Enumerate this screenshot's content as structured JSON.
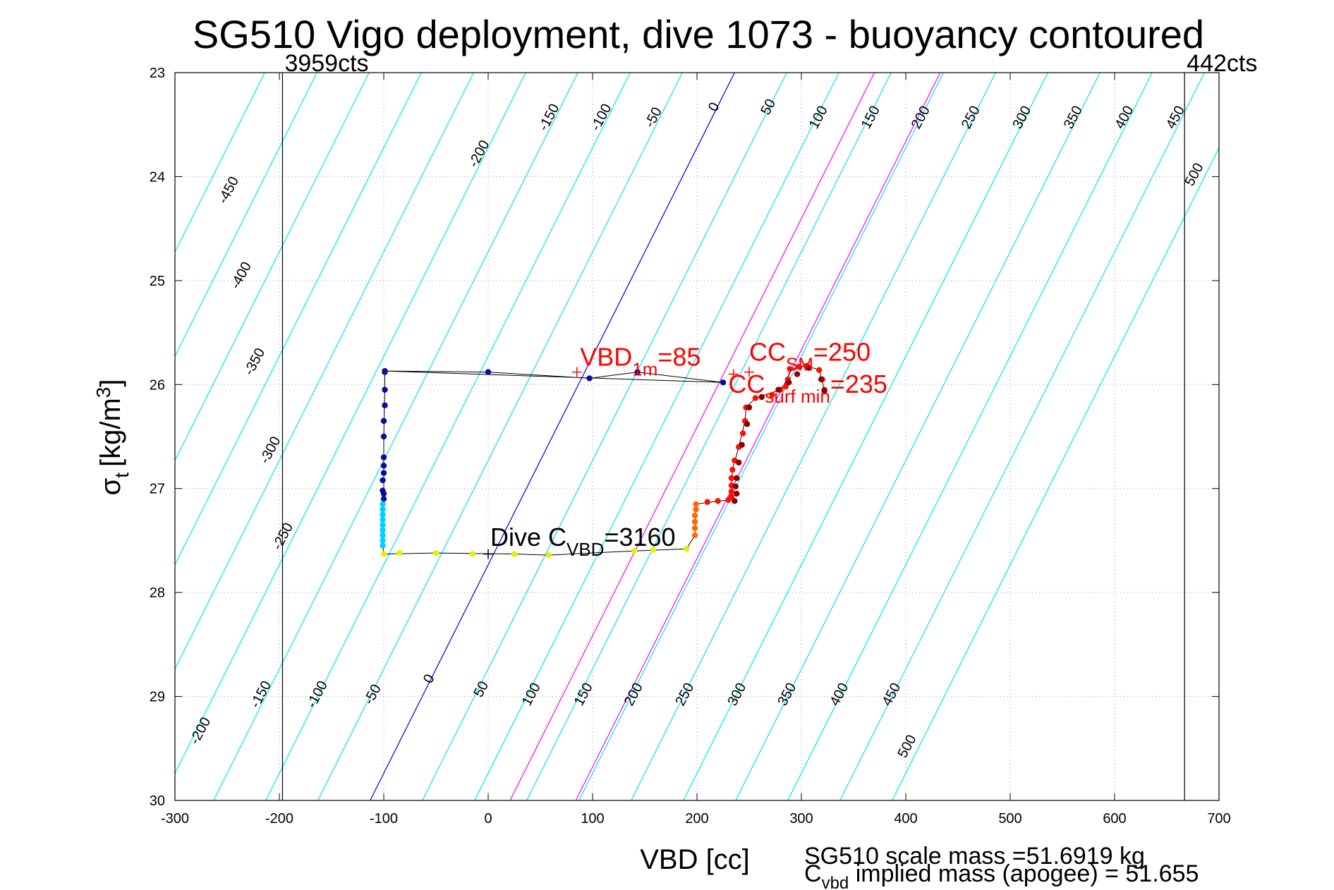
{
  "chart_data": {
    "type": "scatter",
    "title": "SG510 Vigo deployment, dive 1073 - buoyancy contoured",
    "xlabel": "VBD [cc]",
    "ylabel": "σt [kg/m3]",
    "ylabel_main": "σ",
    "ylabel_sub": "t",
    "ylabel_unit": "[kg/m",
    "ylabel_sup": "3",
    "ylabel_close": "]",
    "xlim": [
      -300,
      700
    ],
    "ylim": [
      23,
      30
    ],
    "y_reversed": true,
    "grid": true,
    "x_ticks": [
      -300,
      -200,
      -100,
      0,
      100,
      200,
      300,
      400,
      500,
      600,
      700
    ],
    "y_ticks": [
      23,
      24,
      25,
      26,
      27,
      28,
      29,
      30
    ],
    "contours": {
      "levels": [
        -450,
        -400,
        -350,
        -300,
        -250,
        -200,
        -150,
        -100,
        -50,
        0,
        50,
        100,
        150,
        200,
        250,
        300,
        350,
        400,
        450,
        500
      ],
      "slope_cc_per_sigma": 70,
      "zero_line_x_at_sigma_23": 236,
      "zero_line_x_at_sigma_30": -113,
      "highlight_colors": {
        "0": "#0000dd"
      },
      "magenta_lines": [
        {
          "x_at_23": 370,
          "x_at_30": 21
        },
        {
          "x_at_23": 433,
          "x_at_30": 84
        }
      ],
      "color": "#00e5ee",
      "top_labels": [
        {
          "text": "-450",
          "x": -245,
          "y": 24.15
        },
        {
          "text": "-400",
          "x": -233,
          "y": 24.97
        },
        {
          "text": "-350",
          "x": -220,
          "y": 25.8
        },
        {
          "text": "-300",
          "x": -205,
          "y": 26.65
        },
        {
          "text": "-250",
          "x": -193,
          "y": 27.48
        },
        {
          "text": "-200",
          "x": -5,
          "y": 23.8
        },
        {
          "text": "-150",
          "x": 62,
          "y": 23.45
        },
        {
          "text": "-100",
          "x": 112,
          "y": 23.45
        },
        {
          "text": "-50",
          "x": 162,
          "y": 23.45
        },
        {
          "text": "0",
          "x": 220,
          "y": 23.35
        },
        {
          "text": "50",
          "x": 272,
          "y": 23.35
        },
        {
          "text": "100",
          "x": 320,
          "y": 23.45
        },
        {
          "text": "150",
          "x": 370,
          "y": 23.45
        },
        {
          "text": "200",
          "x": 418,
          "y": 23.45
        },
        {
          "text": "250",
          "x": 466,
          "y": 23.45
        },
        {
          "text": "300",
          "x": 515,
          "y": 23.45
        },
        {
          "text": "350",
          "x": 564,
          "y": 23.45
        },
        {
          "text": "400",
          "x": 613,
          "y": 23.45
        },
        {
          "text": "450",
          "x": 662,
          "y": 23.45
        },
        {
          "text": "500",
          "x": 680,
          "y": 24.0
        }
      ],
      "bottom_labels": [
        {
          "text": "-200",
          "x": -272,
          "y": 29.35
        },
        {
          "text": "-150",
          "x": -214,
          "y": 29.0
        },
        {
          "text": "-100",
          "x": -160,
          "y": 29.0
        },
        {
          "text": "-50",
          "x": -107,
          "y": 29.0
        },
        {
          "text": "0",
          "x": -53,
          "y": 28.85
        },
        {
          "text": "50",
          "x": -3,
          "y": 28.95
        },
        {
          "text": "100",
          "x": 45,
          "y": 29.0
        },
        {
          "text": "150",
          "x": 95,
          "y": 29.0
        },
        {
          "text": "200",
          "x": 143,
          "y": 29.0
        },
        {
          "text": "250",
          "x": 192,
          "y": 29.0
        },
        {
          "text": "300",
          "x": 242,
          "y": 29.0
        },
        {
          "text": "350",
          "x": 290,
          "y": 29.0
        },
        {
          "text": "400",
          "x": 340,
          "y": 29.0
        },
        {
          "text": "450",
          "x": 390,
          "y": 29.0
        },
        {
          "text": "500",
          "x": 405,
          "y": 29.5
        }
      ]
    },
    "count_lines": [
      {
        "x": -197,
        "label": "3959cts"
      },
      {
        "x": 667,
        "label": "442cts"
      }
    ],
    "series": [
      {
        "points": [
          [
            -99,
            25.87
          ],
          [
            0,
            25.88
          ],
          [
            97,
            25.94
          ],
          [
            143,
            25.88
          ],
          [
            225,
            25.98
          ],
          [
            -99,
            25.88
          ],
          [
            -99,
            26.05
          ],
          [
            -99,
            26.2
          ],
          [
            -100,
            26.35
          ],
          [
            -100,
            26.5
          ],
          [
            -100,
            26.7
          ],
          [
            -100,
            26.78
          ],
          [
            -100,
            26.85
          ],
          [
            -101,
            26.92
          ],
          [
            -101,
            27.02
          ],
          [
            -100,
            27.05
          ],
          [
            -100,
            27.1
          ]
        ],
        "color": "#0a0aa0"
      },
      {
        "points": [
          [
            -101,
            27.15
          ],
          [
            -101,
            27.2
          ],
          [
            -101,
            27.25
          ],
          [
            -101,
            27.3
          ],
          [
            -101,
            27.35
          ],
          [
            -101,
            27.4
          ],
          [
            -101,
            27.45
          ],
          [
            -101,
            27.5
          ],
          [
            -101,
            27.55
          ]
        ],
        "color": "#00d0ff"
      },
      {
        "points": [
          [
            -100,
            27.63
          ],
          [
            -85,
            27.62
          ],
          [
            -50,
            27.62
          ],
          [
            -15,
            27.63
          ],
          [
            25,
            27.63
          ],
          [
            58,
            27.64
          ],
          [
            140,
            27.6
          ],
          [
            158,
            27.59
          ],
          [
            190,
            27.58
          ]
        ],
        "color": "#e8f000"
      },
      {
        "points": [
          [
            198,
            27.45
          ],
          [
            198,
            27.38
          ],
          [
            198,
            27.32
          ],
          [
            198,
            27.26
          ],
          [
            199,
            27.2
          ],
          [
            199,
            27.15
          ]
        ],
        "color": "#ff6a00"
      },
      {
        "points": [
          [
            210,
            27.13
          ],
          [
            220,
            27.12
          ],
          [
            230,
            27.11
          ],
          [
            233,
            27.08
          ],
          [
            233,
            27.03
          ],
          [
            233,
            26.97
          ],
          [
            233,
            26.9
          ],
          [
            234,
            26.82
          ],
          [
            236,
            26.73
          ],
          [
            240,
            26.6
          ],
          [
            244,
            26.47
          ],
          [
            246,
            26.35
          ],
          [
            247,
            26.22
          ],
          [
            256,
            26.13
          ],
          [
            272,
            26.1
          ],
          [
            280,
            26.05
          ],
          [
            285,
            26.02
          ],
          [
            287,
            25.95
          ],
          [
            289,
            25.85
          ],
          [
            298,
            25.83
          ],
          [
            305,
            25.82
          ],
          [
            317,
            25.86
          ],
          [
            320,
            25.95
          ],
          [
            322,
            26.05
          ]
        ],
        "color": "#ff1000"
      },
      {
        "points": [
          [
            236,
            27.12
          ],
          [
            238,
            27.05
          ],
          [
            237,
            26.98
          ],
          [
            238,
            26.9
          ],
          [
            240,
            26.75
          ],
          [
            243,
            26.58
          ],
          [
            248,
            26.38
          ],
          [
            250,
            26.22
          ],
          [
            262,
            26.12
          ],
          [
            278,
            26.05
          ],
          [
            288,
            25.98
          ],
          [
            296,
            25.9
          ],
          [
            307,
            25.84
          ],
          [
            319,
            25.95
          ],
          [
            322,
            26.06
          ]
        ],
        "color": "#8b0000"
      }
    ],
    "trajectory": [
      [
        -99,
        25.87
      ],
      [
        0,
        25.88
      ],
      [
        97,
        25.94
      ],
      [
        143,
        25.88
      ],
      [
        225,
        25.98
      ],
      [
        -99,
        25.87
      ],
      [
        -99,
        26.05
      ],
      [
        -100,
        26.5
      ],
      [
        -100,
        27.0
      ],
      [
        -101,
        27.55
      ],
      [
        -100,
        27.63
      ],
      [
        -50,
        27.62
      ],
      [
        25,
        27.63
      ],
      [
        58,
        27.64
      ],
      [
        140,
        27.6
      ],
      [
        190,
        27.58
      ],
      [
        198,
        27.45
      ],
      [
        199,
        27.15
      ],
      [
        230,
        27.11
      ],
      [
        233,
        27.03
      ],
      [
        234,
        26.82
      ],
      [
        240,
        26.6
      ],
      [
        246,
        26.35
      ],
      [
        247,
        26.22
      ],
      [
        256,
        26.13
      ],
      [
        280,
        26.05
      ],
      [
        287,
        25.95
      ],
      [
        289,
        25.85
      ],
      [
        305,
        25.82
      ],
      [
        317,
        25.86
      ],
      [
        322,
        26.05
      ]
    ],
    "annotations": [
      {
        "id": "vbd-1m",
        "main": "VBD",
        "sub": "1m",
        "suffix": "=85",
        "x": 88,
        "y": 25.82,
        "marker_x": 85,
        "marker_y": 25.88,
        "color": "#ff0000"
      },
      {
        "id": "cc-sm",
        "main": "CC",
        "sub": "SM",
        "suffix": "=250",
        "x": 250,
        "y": 25.77,
        "marker_x": 250,
        "marker_y": 25.88,
        "color": "#ff0000"
      },
      {
        "id": "cc-surf",
        "main": "CC",
        "sub": "surf min",
        "suffix": "=235",
        "x": 230,
        "y": 26.08,
        "marker_x": 235,
        "marker_y": 25.9,
        "color": "#ff0000"
      },
      {
        "id": "dive-cvbd",
        "main": "Dive C",
        "sub": "VBD",
        "suffix": "=3160",
        "x": 2,
        "y": 27.55,
        "marker_x": 0,
        "marker_y": 27.63,
        "color": "#000000"
      }
    ]
  },
  "footer": {
    "scale_mass": "SG510 scale mass =51.6919 kg",
    "implied_main": "C",
    "implied_sub": "vbd",
    "implied_rest": " implied mass (apogee) = 51.655"
  }
}
